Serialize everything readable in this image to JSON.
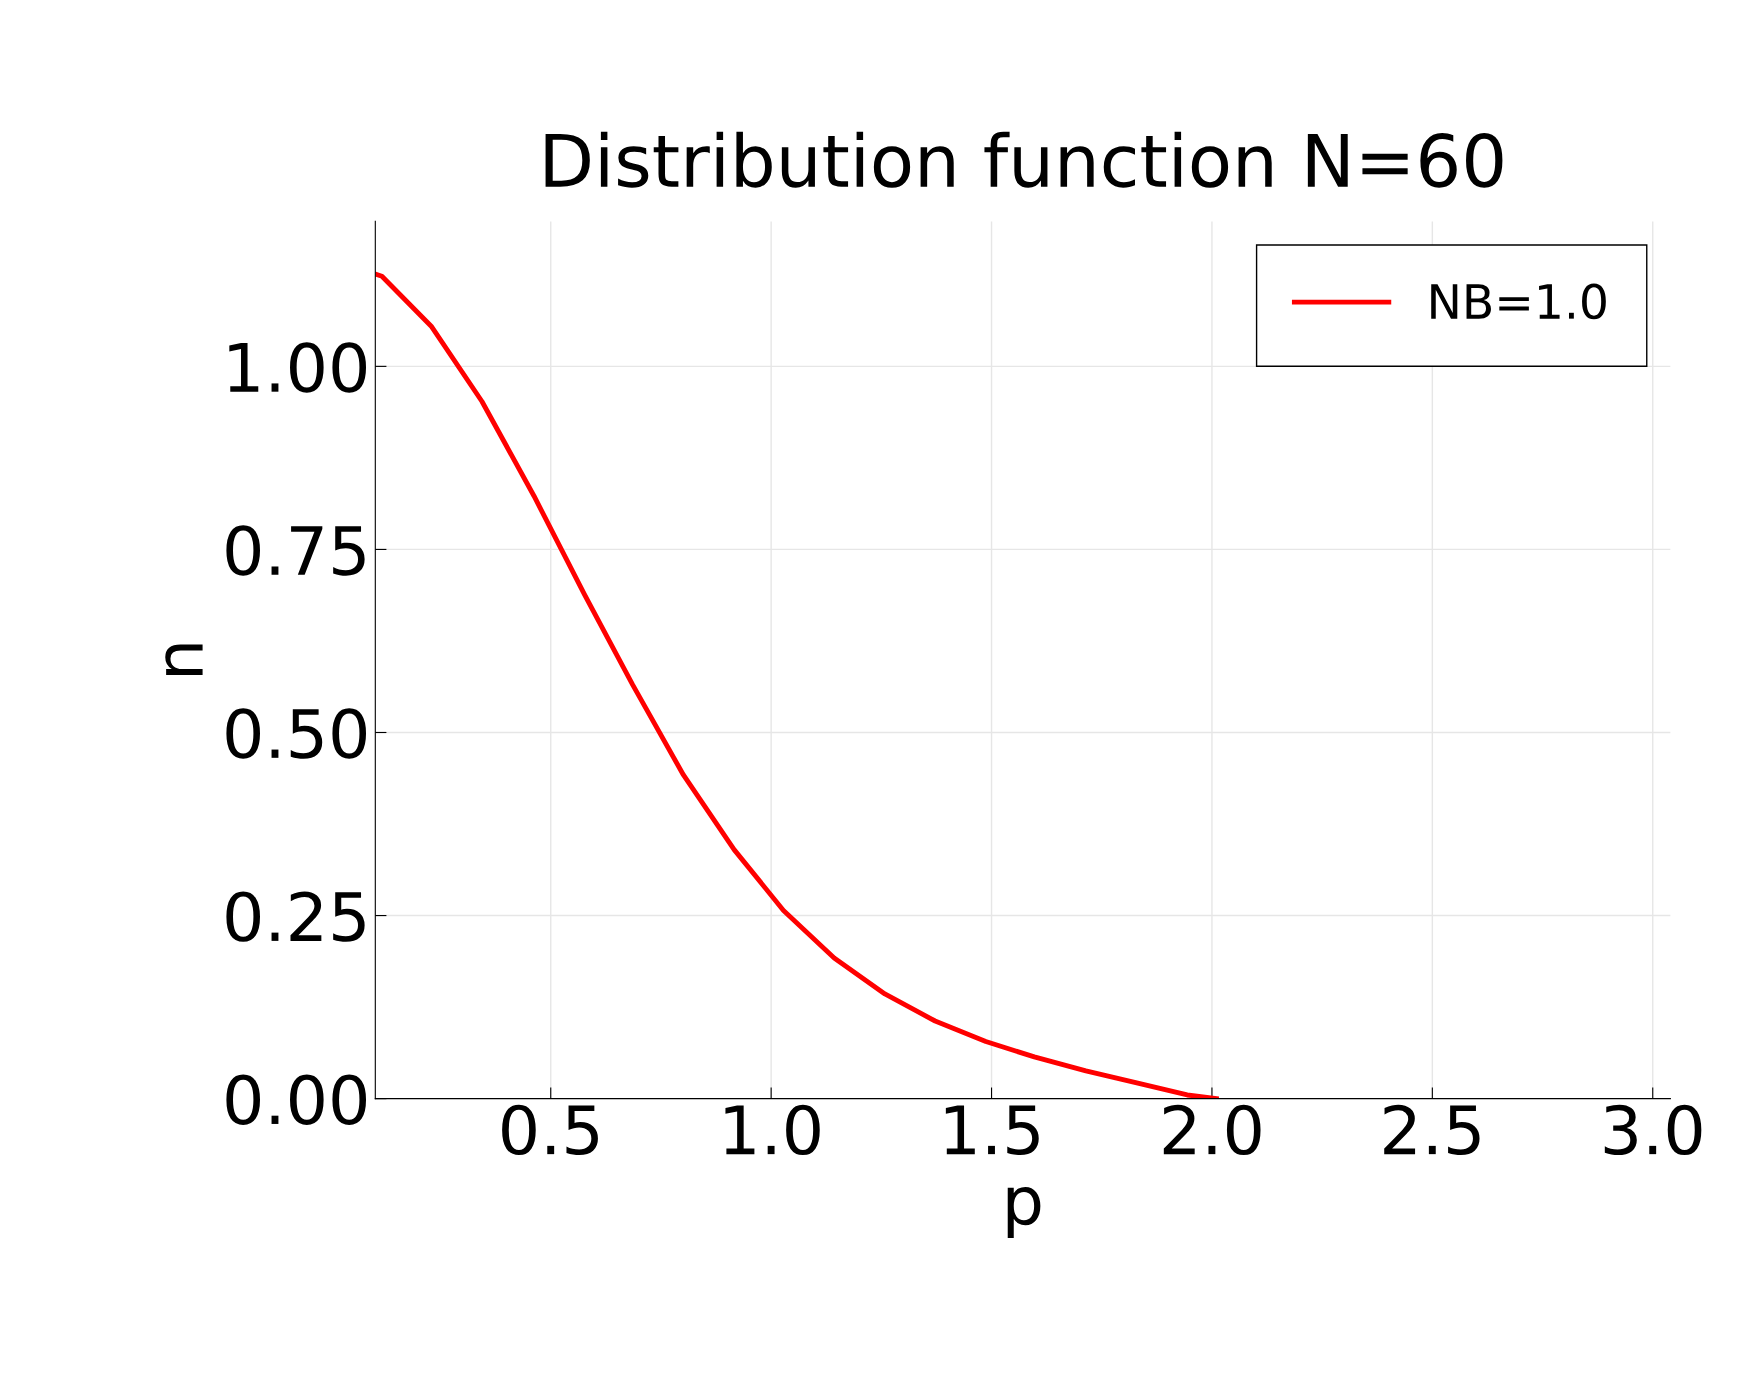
{
  "chart_data": {
    "type": "line",
    "title": "Distribution function N=60",
    "xlabel": "p",
    "ylabel": "n",
    "series": [
      {
        "name": "NB=1.0",
        "color": "#ff0000",
        "x": [
          0.102,
          0.117,
          0.23,
          0.344,
          0.462,
          0.577,
          0.686,
          0.801,
          0.916,
          1.028,
          1.143,
          1.258,
          1.372,
          1.487,
          1.597,
          1.714,
          1.827,
          1.944,
          2.01
        ],
        "values": [
          1.126,
          1.123,
          1.054,
          0.952,
          0.823,
          0.688,
          0.565,
          0.442,
          0.34,
          0.257,
          0.192,
          0.143,
          0.106,
          0.078,
          0.057,
          0.038,
          0.022,
          0.005,
          0.0
        ]
      }
    ],
    "xlim": [
      0.102,
      3.04
    ],
    "ylim": [
      0,
      1.198
    ],
    "xticks": [
      {
        "value": 0.5,
        "label": "0.5"
      },
      {
        "value": 1.0,
        "label": "1.0"
      },
      {
        "value": 1.5,
        "label": "1.5"
      },
      {
        "value": 2.0,
        "label": "2.0"
      },
      {
        "value": 2.5,
        "label": "2.5"
      },
      {
        "value": 3.0,
        "label": "3.0"
      }
    ],
    "yticks": [
      {
        "value": 0,
        "label": "0.00"
      },
      {
        "value": 0.25,
        "label": "0.25"
      },
      {
        "value": 0.5,
        "label": "0.50"
      },
      {
        "value": 0.75,
        "label": "0.75"
      },
      {
        "value": 1.0,
        "label": "1.00"
      }
    ],
    "grid": true,
    "legend": "top right",
    "line_style": "solid",
    "marker": "none"
  }
}
